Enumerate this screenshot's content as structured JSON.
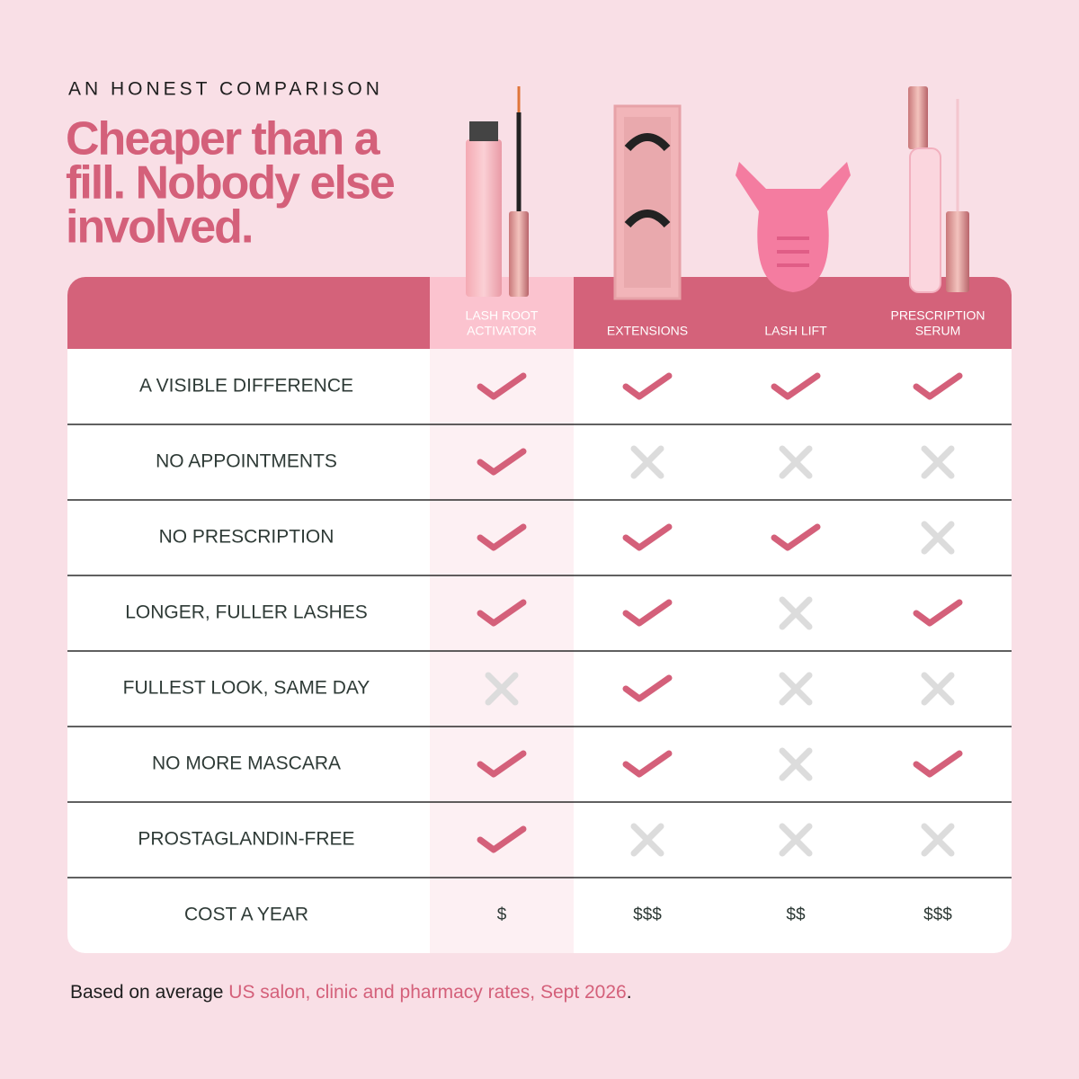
{
  "header": {
    "eyebrow": "AN HONEST COMPARISON",
    "title_lines": [
      "Cheaper than a",
      "fill. Nobody else",
      "involved."
    ]
  },
  "table": {
    "columns": [
      [
        "LASH ROOT",
        "ACTIVATOR"
      ],
      [
        "EXTENSIONS"
      ],
      [
        "LASH LIFT"
      ],
      [
        "PRESCRIPTION",
        "SERUM"
      ]
    ],
    "rows": [
      {
        "label": "A VISIBLE DIFFERENCE",
        "cells": [
          true,
          true,
          true,
          true
        ]
      },
      {
        "label": "NO APPOINTMENTS",
        "cells": [
          true,
          false,
          false,
          false
        ]
      },
      {
        "label": "NO PRESCRIPTION",
        "cells": [
          true,
          true,
          true,
          false
        ]
      },
      {
        "label": "LONGER, FULLER LASHES",
        "cells": [
          true,
          true,
          false,
          true
        ]
      },
      {
        "label": "FULLEST LOOK, SAME DAY",
        "cells": [
          false,
          true,
          false,
          false
        ]
      },
      {
        "label": "NO MORE MASCARA",
        "cells": [
          true,
          true,
          false,
          true
        ]
      },
      {
        "label": "PROSTAGLANDIN-FREE",
        "cells": [
          true,
          false,
          false,
          false
        ]
      },
      {
        "label": "COST A YEAR",
        "cells": [
          "$",
          "$$$",
          "$$",
          "$$$"
        ]
      }
    ]
  },
  "footnote": {
    "before": "Based on average ",
    "highlight": "US salon, clinic and pharmacy rates, Sept 2026",
    "after": "."
  }
}
